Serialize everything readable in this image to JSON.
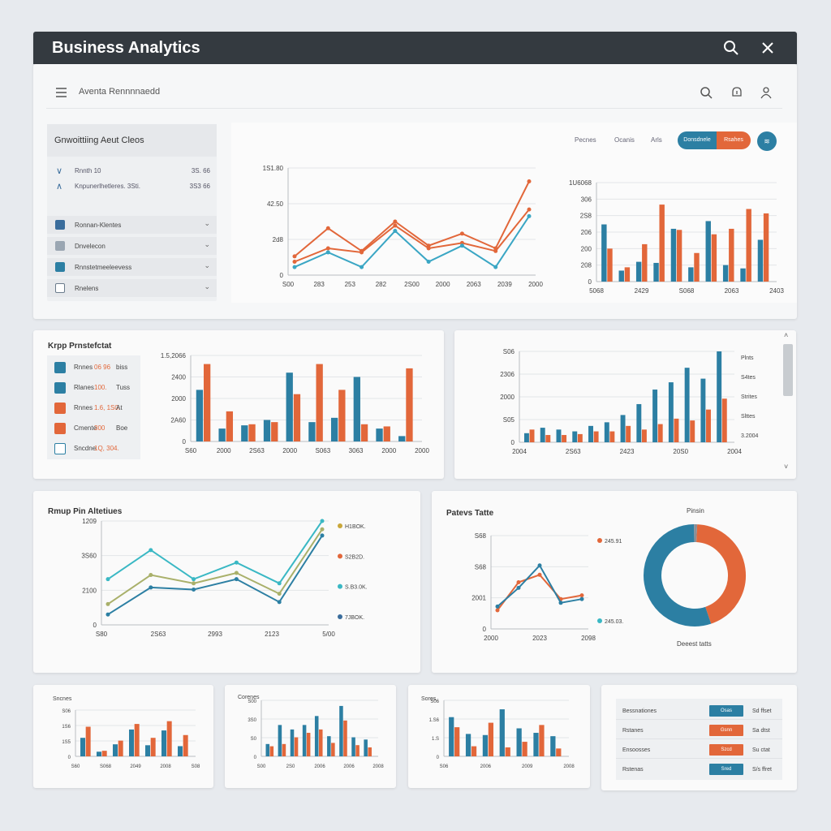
{
  "window": {
    "title": "Business Analytics"
  },
  "header": {
    "label": "Aventa Rennnnaedd"
  },
  "left_panel": {
    "title": "Gnwoittiing Aeut Cleos",
    "summary": [
      {
        "label": "Rnnth 10",
        "value": "3S. 66",
        "icon": "chevron-down-icon"
      },
      {
        "label": "Knpunerlhetleres. 3Sti.",
        "value": "3S3 66",
        "icon": "chevron-up-icon"
      }
    ],
    "nav": [
      {
        "label": "Ronnan-Klentes",
        "icon": "home-icon",
        "color": "#3a6d9c"
      },
      {
        "label": "Dnvelecon",
        "icon": "share-icon",
        "color": "#9aa6b2"
      },
      {
        "label": "Rnnstetmeeleevess",
        "icon": "grid-icon",
        "color": "#2c7fa3"
      },
      {
        "label": "Rnelens",
        "icon": "square-icon",
        "color": "#6b7c8c"
      }
    ]
  },
  "filters": {
    "f1": "Pecnes",
    "f2": "Ocanis",
    "f3": "Arls",
    "pill_a": "Donsdnele",
    "pill_b": "Rsahes",
    "circle": "≋"
  },
  "kpi": {
    "title": "Krpp Prnstefctat",
    "rows": [
      {
        "label": "Rnnes",
        "value": "06 96",
        "suffix": "biss",
        "icon": "card-icon",
        "color": "#2c7fa3"
      },
      {
        "label": "Rlanes",
        "value": "100.",
        "suffix": "Tuss",
        "icon": "plane-icon",
        "color": "#2c7fa3"
      },
      {
        "label": "Rnnes",
        "value": "1.6, 1S0.",
        "suffix": "At",
        "icon": "tool-icon",
        "color": "#e2673a"
      },
      {
        "label": "Cmente",
        "value": "300",
        "suffix": "Boe",
        "icon": "tool-icon",
        "color": "#e2673a"
      },
      {
        "label": "Sncdne",
        "value": "1Q, 304.",
        "suffix": "",
        "icon": "gear-icon",
        "color": "#2c7fa3"
      }
    ]
  },
  "panel_titles": {
    "mid_left": "Rmup Pin Altetiues",
    "mid_right": "Patevs Tatte",
    "donut_title": "Pinsin",
    "donut_sub": "Deeest tatts",
    "small_a": "Sncnes",
    "small_b": "Corenes",
    "small_c": "Sores"
  },
  "table": {
    "rows": [
      {
        "label": "Bessnationes",
        "badge": "Osas",
        "right": "Sd ffset",
        "color": "#2c7fa3"
      },
      {
        "label": "Rstanes",
        "badge": "Gsnn",
        "right": "Sa dtst",
        "color": "#e2673a"
      },
      {
        "label": "Ensoosses",
        "badge": "Szcd",
        "right": "Su ctat",
        "color": "#e2673a"
      },
      {
        "label": "Rstenas",
        "badge": "Sred",
        "right": "S/s ffret",
        "color": "#2c7fa3"
      }
    ]
  },
  "charts": [
    {
      "type": "line",
      "id": "top-line",
      "ylabels": [
        "0",
        "2d8",
        "42.50",
        "1S1.80"
      ],
      "xlabels": [
        "S00",
        "283",
        "253",
        "282",
        "2S00",
        "2000",
        "2063",
        "2039",
        "2000"
      ],
      "series": [
        {
          "color": "#e2673a",
          "values": [
            14,
            35,
            18,
            40,
            22,
            31,
            20,
            70
          ]
        },
        {
          "color": "#e2673a",
          "values": [
            10,
            20,
            17,
            37,
            20,
            24,
            18,
            49
          ]
        },
        {
          "color": "#3aa6c4",
          "values": [
            6,
            17,
            6,
            33,
            10,
            22,
            6,
            44
          ]
        }
      ],
      "ylim": [
        0,
        80
      ]
    },
    {
      "type": "bar",
      "id": "top-right",
      "ylabels": [
        "0",
        "208",
        "200",
        "206",
        "2S8",
        "306",
        "1U6068"
      ],
      "xlabels": [
        "5068",
        "2429",
        "S068",
        "2063",
        "2403"
      ],
      "right_labels": [],
      "series": [
        {
          "color": "#2c7fa3",
          "values": [
            52,
            10,
            18,
            17,
            48,
            13,
            55,
            15,
            12,
            38
          ]
        },
        {
          "color": "#e2673a",
          "values": [
            30,
            13,
            34,
            70,
            47,
            26,
            43,
            48,
            66,
            62
          ]
        }
      ],
      "ylim": [
        0,
        90
      ]
    },
    {
      "type": "bar",
      "id": "mid-a",
      "ylabels": [
        "0",
        "2A60",
        "2000",
        "2400",
        "1.5,2066"
      ],
      "xlabels": [
        "S60",
        "2000",
        "2S63",
        "2000",
        "S063",
        "3063",
        "2000",
        "2000"
      ],
      "right_labels": [],
      "series": [
        {
          "color": "#2c7fa3",
          "values": [
            48,
            12,
            15,
            20,
            64,
            18,
            22,
            60,
            12,
            5
          ]
        },
        {
          "color": "#e2673a",
          "values": [
            72,
            28,
            16,
            18,
            44,
            72,
            48,
            16,
            14,
            68
          ]
        }
      ],
      "ylim": [
        0,
        80
      ]
    },
    {
      "type": "bar",
      "id": "mid-b",
      "ylabels": [
        "0",
        "S05",
        "2000",
        "2306",
        "S06"
      ],
      "xlabels": [
        "2004",
        "2S63",
        "2423",
        "20S0",
        "2004"
      ],
      "right_labels": [
        "Plnts",
        "S4tes",
        "Strites",
        "Slttes",
        "3.2004"
      ],
      "series": [
        {
          "color": "#2c7fa3",
          "values": [
            10,
            16,
            14,
            12,
            18,
            22,
            30,
            42,
            58,
            66,
            82,
            70,
            100
          ]
        },
        {
          "color": "#e2673a",
          "values": [
            14,
            8,
            8,
            9,
            12,
            12,
            18,
            14,
            20,
            26,
            24,
            36,
            48
          ]
        }
      ],
      "ylim": [
        0,
        100
      ]
    },
    {
      "type": "line",
      "id": "mid-left-line",
      "ylabels": [
        "0",
        "2100",
        "3S60",
        "1209"
      ],
      "xlabels": [
        "S80",
        "2S63",
        "2993",
        "2123",
        "5/00"
      ],
      "right_labels": [
        "H1BOK.",
        "S2B2D.",
        "S.B3.0K.",
        "7JBOK."
      ],
      "legend_colors": [
        "#c9a73a",
        "#e2673a",
        "#3ab8c4",
        "#3a6d9c"
      ],
      "series": [
        {
          "color": "#3ab8c4",
          "values": [
            44,
            72,
            44,
            60,
            40,
            100
          ]
        },
        {
          "color": "#a9b06a",
          "values": [
            20,
            48,
            40,
            50,
            30,
            92
          ]
        },
        {
          "color": "#2c7fa3",
          "values": [
            10,
            36,
            34,
            44,
            22,
            86
          ]
        }
      ],
      "ylim": [
        0,
        100
      ]
    },
    {
      "type": "line",
      "id": "mid-right-line",
      "ylabels": [
        "0",
        "2001",
        "S68",
        "S68"
      ],
      "xlabels": [
        "2000",
        "2023",
        "2098"
      ],
      "right_labels": [
        "245.91",
        "245.03."
      ],
      "legend_colors": [
        "#e2673a",
        "#3ab8c4"
      ],
      "series": [
        {
          "color": "#e2673a",
          "values": [
            20,
            50,
            58,
            32,
            36
          ]
        },
        {
          "color": "#2c7fa3",
          "values": [
            24,
            44,
            68,
            28,
            32
          ]
        }
      ],
      "ylim": [
        0,
        100
      ]
    },
    {
      "type": "donut",
      "id": "donut",
      "slices": [
        {
          "color": "#e2673a",
          "value": 44
        },
        {
          "color": "#2c7fa3",
          "value": 55
        },
        {
          "color": "#8a8f96",
          "value": 1
        }
      ]
    },
    {
      "type": "bar",
      "id": "small-1",
      "ylabels": [
        "0",
        "1S5",
        "1S6",
        "S06"
      ],
      "xlabels": [
        "S60",
        "S068",
        "2049",
        "2008",
        "S08"
      ],
      "right_labels": [],
      "series": [
        {
          "color": "#2c7fa3",
          "values": [
            40,
            10,
            26,
            58,
            24,
            56,
            22
          ]
        },
        {
          "color": "#e2673a",
          "values": [
            64,
            12,
            34,
            70,
            40,
            76,
            46
          ]
        }
      ],
      "ylim": [
        0,
        100
      ]
    },
    {
      "type": "bar",
      "id": "small-2",
      "ylabels": [
        "0",
        "S0",
        "3S0",
        "S00"
      ],
      "xlabels": [
        "S00",
        "2S0",
        "2006",
        "2006",
        "2008"
      ],
      "right_labels": [],
      "series": [
        {
          "color": "#2c7fa3",
          "values": [
            22,
            56,
            48,
            56,
            72,
            36,
            90,
            34,
            30
          ]
        },
        {
          "color": "#e2673a",
          "values": [
            18,
            22,
            34,
            42,
            48,
            24,
            64,
            20,
            16
          ]
        }
      ],
      "ylim": [
        0,
        100
      ]
    },
    {
      "type": "bar",
      "id": "small-3",
      "ylabels": [
        "0",
        "1.S",
        "1.S6",
        "S06"
      ],
      "xlabels": [
        "S06",
        "2006",
        "2009",
        "2008"
      ],
      "right_labels": [],
      "series": [
        {
          "color": "#2c7fa3",
          "values": [
            70,
            40,
            38,
            84,
            50,
            42,
            36
          ]
        },
        {
          "color": "#e2673a",
          "values": [
            52,
            18,
            60,
            16,
            26,
            56,
            14
          ]
        }
      ],
      "ylim": [
        0,
        100
      ]
    }
  ]
}
